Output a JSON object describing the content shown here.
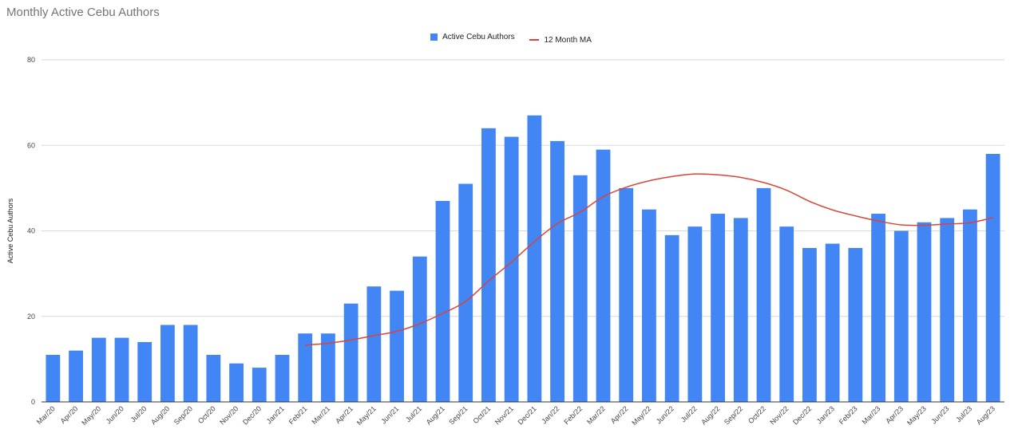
{
  "chart_data": {
    "type": "bar",
    "title": "Monthly Active Cebu Authors",
    "xlabel": "",
    "ylabel": "Active Cebu Authors",
    "ylim": [
      0,
      80
    ],
    "yticks": [
      0,
      20,
      40,
      60,
      80
    ],
    "grid": true,
    "legend_position": "top-center",
    "categories": [
      "Mar/20",
      "Apr/20",
      "May/20",
      "Jun/20",
      "Jul/20",
      "Aug/20",
      "Sep/20",
      "Oct/20",
      "Nov/20",
      "Dec/20",
      "Jan/21",
      "Feb/21",
      "Mar/21",
      "Apr/21",
      "May/21",
      "Jun/21",
      "Jul/21",
      "Aug/21",
      "Sep/21",
      "Oct/21",
      "Nov/21",
      "Dec/21",
      "Jan/22",
      "Feb/22",
      "Mar/22",
      "Apr/22",
      "May/22",
      "Jun/22",
      "Jul/22",
      "Aug/22",
      "Sep/22",
      "Oct/22",
      "Nov/22",
      "Dec/22",
      "Jan/23",
      "Feb/23",
      "Mar/23",
      "Apr/23",
      "May/23",
      "Jun/23",
      "Jul/23",
      "Aug/23"
    ],
    "series": [
      {
        "name": "Active Cebu Authors",
        "kind": "bar",
        "color": "#4285f4",
        "values": [
          11,
          12,
          15,
          15,
          14,
          18,
          18,
          11,
          9,
          8,
          11,
          16,
          16,
          23,
          27,
          26,
          34,
          47,
          51,
          64,
          62,
          67,
          61,
          53,
          59,
          50,
          45,
          39,
          41,
          44,
          43,
          50,
          41,
          36,
          37,
          36,
          44,
          40,
          42,
          43,
          45,
          58
        ]
      },
      {
        "name": "12 Month MA",
        "kind": "line",
        "color": "#db4437",
        "values": [
          null,
          null,
          null,
          null,
          null,
          null,
          null,
          null,
          null,
          null,
          null,
          13.3,
          13.7,
          14.5,
          15.5,
          16.5,
          18.3,
          20.7,
          23.5,
          28.3,
          32.7,
          37.5,
          41.7,
          44.4,
          48.0,
          50.2,
          51.7,
          52.7,
          53.3,
          53.1,
          52.5,
          51.3,
          49.5,
          46.9,
          44.9,
          43.5,
          42.3,
          41.4,
          41.3,
          41.6,
          41.9,
          43.1
        ]
      }
    ]
  }
}
